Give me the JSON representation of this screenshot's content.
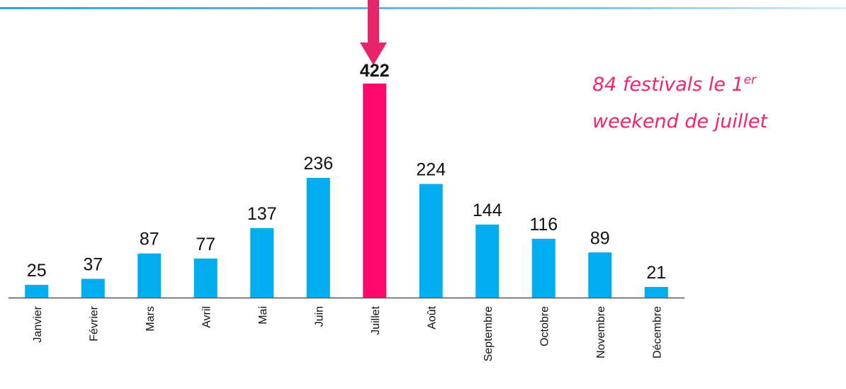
{
  "chart_data": {
    "type": "bar",
    "categories": [
      "Janvier",
      "Février",
      "Mars",
      "Avril",
      "Mai",
      "Juin",
      "Juillet",
      "Août",
      "Septembre",
      "Octobre",
      "Novembre",
      "Décembre"
    ],
    "values": [
      25,
      37,
      87,
      77,
      137,
      236,
      422,
      224,
      144,
      116,
      89,
      21
    ],
    "colors": [
      "#00aeef",
      "#00aeef",
      "#00aeef",
      "#00aeef",
      "#00aeef",
      "#00aeef",
      "#ff0a6c",
      "#00aeef",
      "#00aeef",
      "#00aeef",
      "#00aeef",
      "#00aeef"
    ],
    "annotation": {
      "line1": "84 festivals le 1",
      "sup": "er",
      "line2": "weekend de juillet"
    }
  }
}
